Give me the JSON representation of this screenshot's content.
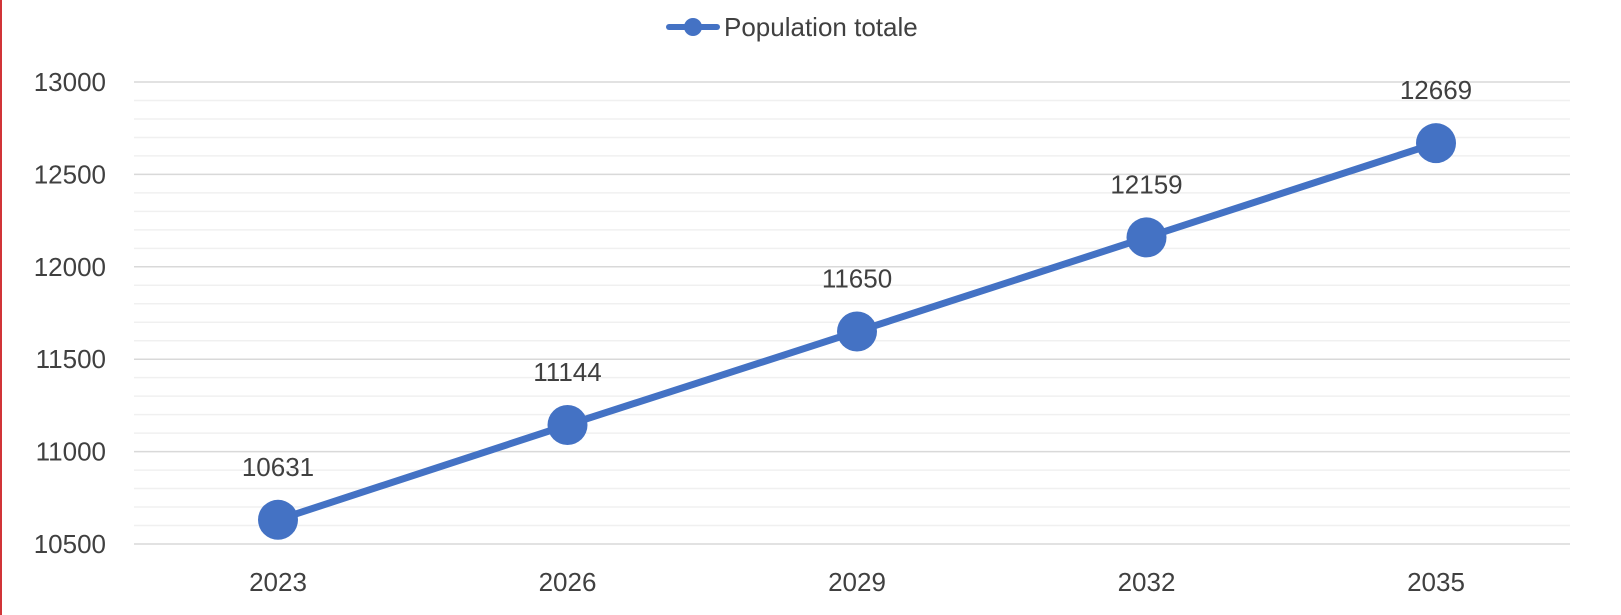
{
  "chart_data": {
    "type": "line",
    "title": "",
    "xlabel": "",
    "ylabel": "",
    "categories": [
      "2023",
      "2026",
      "2029",
      "2032",
      "2035"
    ],
    "series": [
      {
        "name": "Population totale",
        "values": [
          10631,
          11144,
          11650,
          12159,
          12669
        ],
        "color": "#4472c4",
        "data_labels": [
          "10631",
          "11144",
          "11650",
          "12159",
          "12669"
        ]
      }
    ],
    "ylim": [
      10500,
      13000
    ],
    "yticks": [
      "10500",
      "11000",
      "11500",
      "12000",
      "12500",
      "13000"
    ],
    "y_major_step": 500,
    "y_minor_step": 100,
    "grid": true,
    "legend_position": "top",
    "colors": {
      "series": "#4472c4",
      "major_grid": "#d9d9d9",
      "minor_grid": "#f0f0f0",
      "text": "#404040",
      "frame_accent": "#d13438"
    }
  }
}
